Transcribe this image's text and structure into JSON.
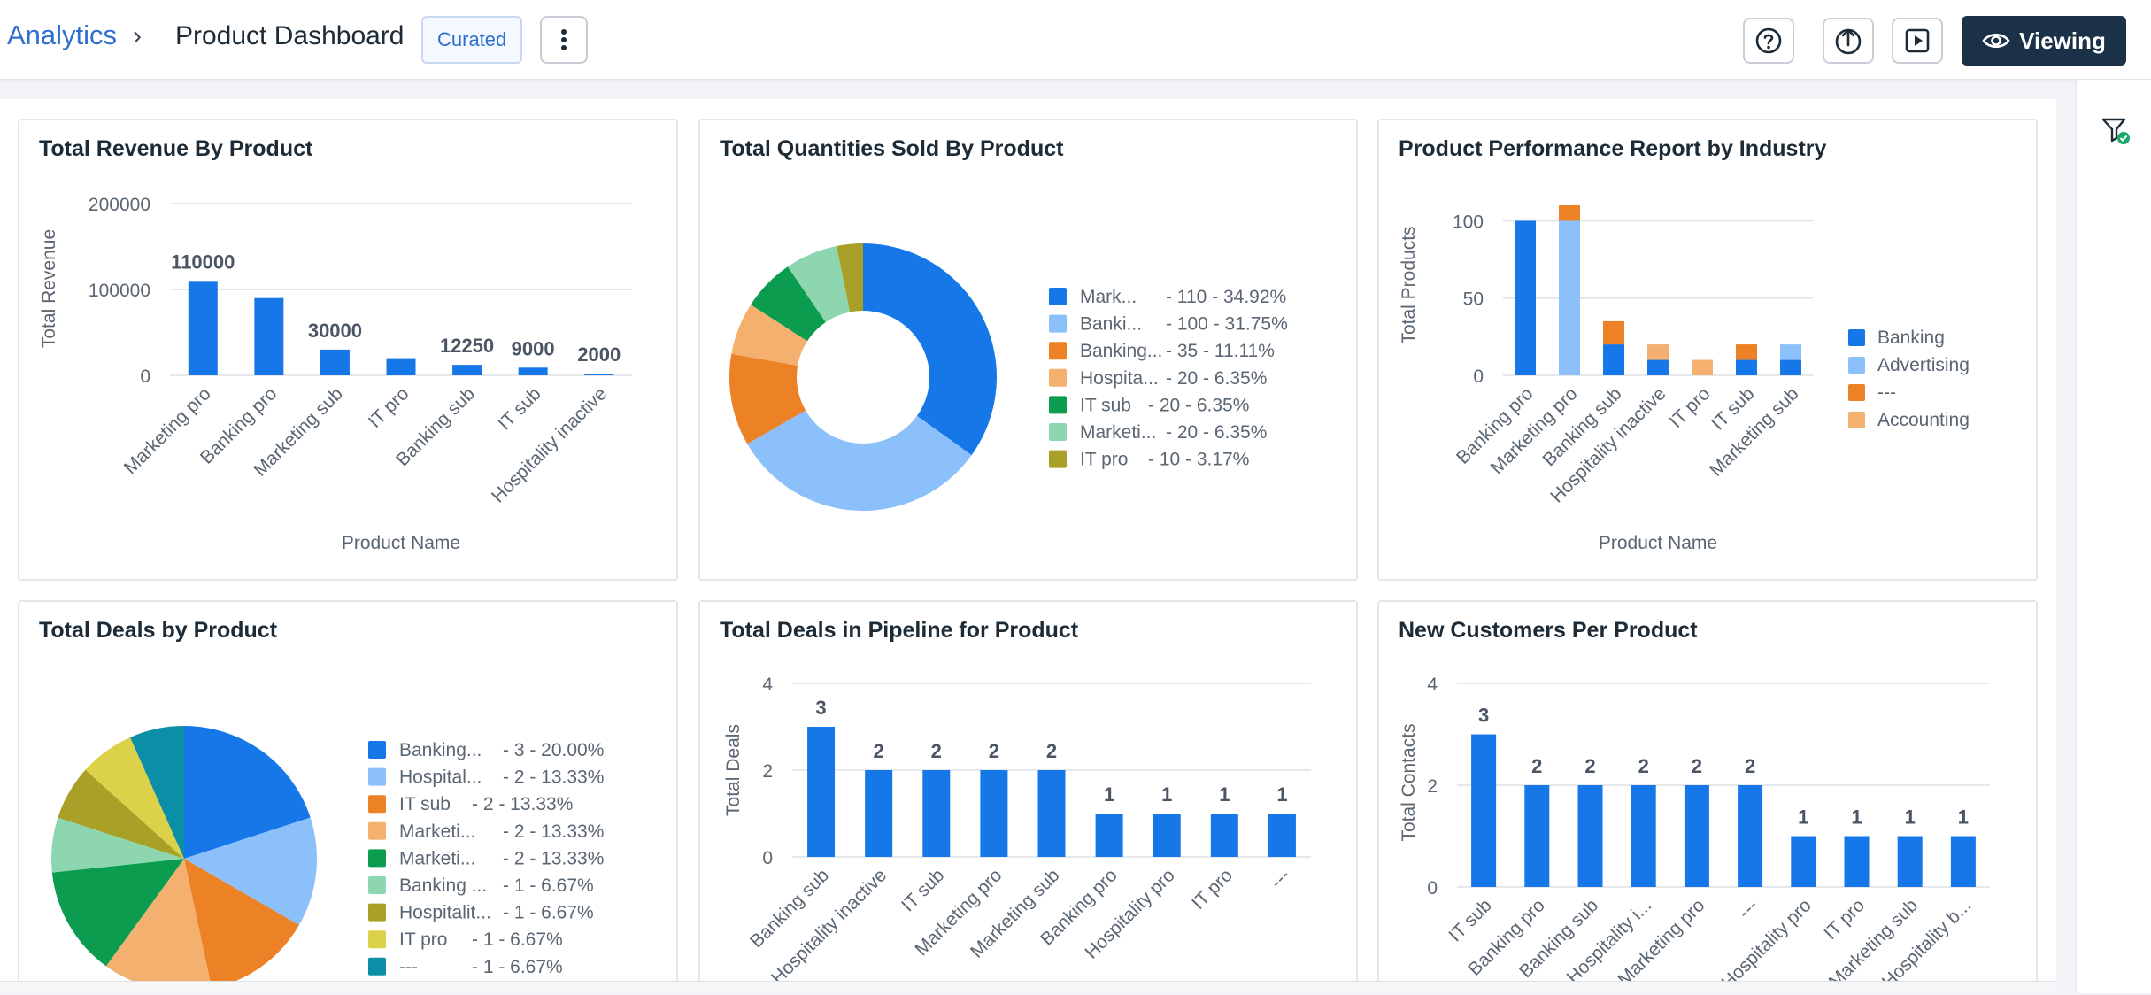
{
  "header": {
    "breadcrumb_root": "Analytics",
    "breadcrumb_sep": "›",
    "title": "Product Dashboard",
    "badge": "Curated",
    "viewing_label": "Viewing",
    "icons": [
      "more-vertical-icon",
      "help-icon",
      "share-icon",
      "present-icon",
      "eye-icon"
    ]
  },
  "colors": {
    "blue": "#1677e8",
    "light_blue": "#8cc0fb",
    "orange": "#ec8125",
    "peach": "#f4b06f",
    "green": "#0b9c4f",
    "mint": "#8dd6b0",
    "olive": "#a9a027",
    "yellow": "#dbd24a",
    "teal": "#0c8ea6"
  },
  "cards": [
    {
      "title": "Total Revenue By Product",
      "chart_data": {
        "type": "bar",
        "categories": [
          "Marketing pro",
          "Banking pro",
          "Marketing sub",
          "IT pro",
          "Banking sub",
          "IT sub",
          "Hospitality inactive"
        ],
        "values": [
          110000,
          90000,
          30000,
          20000,
          12250,
          9000,
          2000
        ],
        "data_labels": [
          "110000",
          "",
          "30000",
          "",
          "12250",
          "9000",
          "2000"
        ],
        "xlabel": "Product Name",
        "ylabel": "Total Revenue",
        "ylim": [
          0,
          200000
        ],
        "yticks": [
          "0",
          "100000",
          "200000"
        ],
        "grid": true
      }
    },
    {
      "title": "Total Quantities Sold By Product",
      "chart_data": {
        "type": "pie",
        "donut": true,
        "slices": [
          {
            "label": "Mark...",
            "value": 110,
            "text": "- 110 - 34.92%",
            "color": "#1677e8"
          },
          {
            "label": "Banki...",
            "value": 100,
            "text": "- 100 - 31.75%",
            "color": "#8cc0fb"
          },
          {
            "label": "Banking...",
            "value": 35,
            "text": "- 35 - 11.11%",
            "color": "#ec8125"
          },
          {
            "label": "Hospita...",
            "value": 20,
            "text": "- 20 - 6.35%",
            "color": "#f4b06f"
          },
          {
            "label": "IT sub",
            "value": 20,
            "text": "- 20 - 6.35%",
            "color": "#0b9c4f"
          },
          {
            "label": "Marketi...",
            "value": 20,
            "text": "- 20 - 6.35%",
            "color": "#8dd6b0"
          },
          {
            "label": "IT pro",
            "value": 10,
            "text": "- 10 - 3.17%",
            "color": "#a9a027"
          }
        ],
        "legend": "right"
      }
    },
    {
      "title": "Product Performance Report by Industry",
      "chart_data": {
        "type": "bar",
        "stacked": true,
        "categories": [
          "Banking pro",
          "Marketing pro",
          "Banking sub",
          "Hospitality inactive",
          "IT pro",
          "IT sub",
          "Marketing sub"
        ],
        "series": [
          {
            "name": "Banking",
            "values": [
              100,
              0,
              20,
              10,
              0,
              10,
              10
            ],
            "color": "#1677e8"
          },
          {
            "name": "Advertising",
            "values": [
              0,
              100,
              0,
              0,
              0,
              0,
              10
            ],
            "color": "#8cc0fb"
          },
          {
            "name": "---",
            "values": [
              0,
              10,
              15,
              0,
              0,
              10,
              0
            ],
            "color": "#ec8125"
          },
          {
            "name": "Accounting",
            "values": [
              0,
              0,
              0,
              10,
              10,
              0,
              0
            ],
            "color": "#f4b06f"
          }
        ],
        "xlabel": "Product Name",
        "ylabel": "Total Products",
        "ylim": [
          0,
          110
        ],
        "yticks": [
          "0",
          "50",
          "100"
        ],
        "legend": "right"
      }
    },
    {
      "title": "Total Deals by Product",
      "chart_data": {
        "type": "pie",
        "slices": [
          {
            "label": "Banking...",
            "value": 3,
            "text": "- 3 - 20.00%",
            "color": "#1677e8"
          },
          {
            "label": "Hospital...",
            "value": 2,
            "text": "- 2 - 13.33%",
            "color": "#8cc0fb"
          },
          {
            "label": "IT sub",
            "value": 2,
            "text": "- 2 - 13.33%",
            "color": "#ec8125"
          },
          {
            "label": "Marketi...",
            "value": 2,
            "text": "- 2 - 13.33%",
            "color": "#f4b06f"
          },
          {
            "label": "Marketi...",
            "value": 2,
            "text": "- 2 - 13.33%",
            "color": "#0b9c4f"
          },
          {
            "label": "Banking ...",
            "value": 1,
            "text": "- 1 - 6.67%",
            "color": "#8dd6b0"
          },
          {
            "label": "Hospitalit...",
            "value": 1,
            "text": "- 1 - 6.67%",
            "color": "#a9a027"
          },
          {
            "label": "IT pro",
            "value": 1,
            "text": "- 1 - 6.67%",
            "color": "#dbd24a"
          },
          {
            "label": "---",
            "value": 1,
            "text": "- 1 - 6.67%",
            "color": "#0c8ea6"
          }
        ],
        "legend": "right"
      }
    },
    {
      "title": "Total Deals in Pipeline for Product",
      "chart_data": {
        "type": "bar",
        "categories": [
          "Banking sub",
          "Hospitality inactive",
          "IT sub",
          "Marketing pro",
          "Marketing sub",
          "Banking pro",
          "Hospitality pro",
          "IT pro",
          "---"
        ],
        "values": [
          3,
          2,
          2,
          2,
          2,
          1,
          1,
          1,
          1
        ],
        "data_labels": [
          "3",
          "2",
          "2",
          "2",
          "2",
          "1",
          "1",
          "1",
          "1"
        ],
        "ylabel": "Total Deals",
        "ylim": [
          0,
          4
        ],
        "yticks": [
          "0",
          "2",
          "4"
        ]
      }
    },
    {
      "title": "New Customers Per Product",
      "chart_data": {
        "type": "bar",
        "categories": [
          "IT sub",
          "Banking pro",
          "Banking sub",
          "Hospitality i...",
          "Marketing pro",
          "---",
          "Hospitality pro",
          "IT pro",
          "Marketing sub",
          "Hospitality b..."
        ],
        "values": [
          3,
          2,
          2,
          2,
          2,
          2,
          1,
          1,
          1,
          1
        ],
        "data_labels": [
          "3",
          "2",
          "2",
          "2",
          "2",
          "2",
          "1",
          "1",
          "1",
          "1"
        ],
        "ylabel": "Total Contacts",
        "ylim": [
          0,
          4
        ],
        "yticks": [
          "0",
          "2",
          "4"
        ]
      }
    }
  ]
}
